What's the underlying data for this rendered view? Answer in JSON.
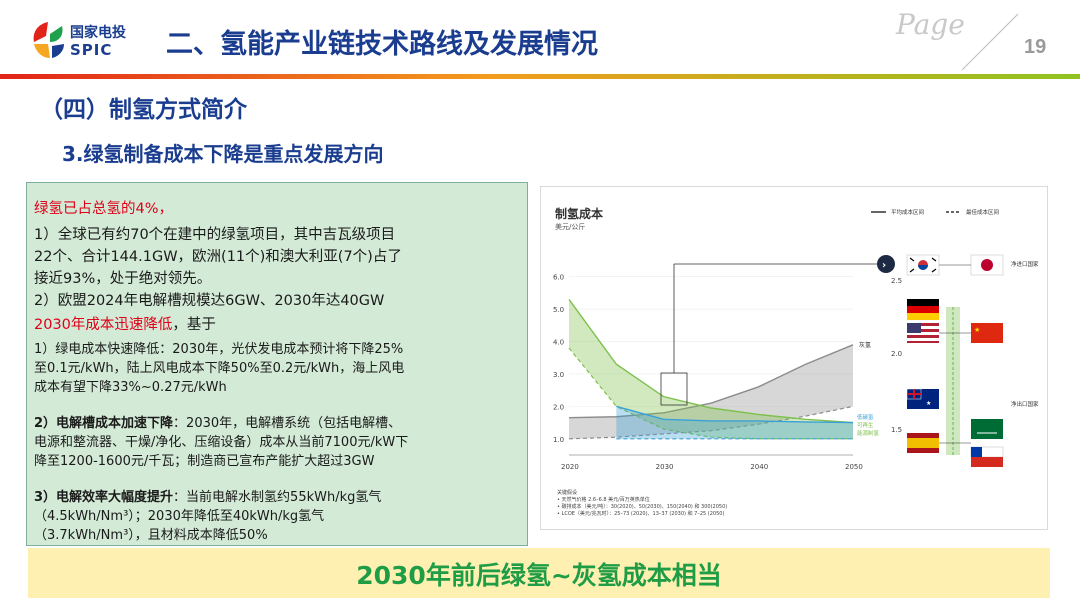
{
  "header": {
    "logo_cn": "国家电投",
    "logo_en": "SPIC",
    "title": "二、氢能产业链技术路线及发展情况",
    "page_word": "Page",
    "page_number": "19"
  },
  "section_title": "（四）制氢方式简介",
  "subtitle": "3.绿氢制备成本下降是重点发展方向",
  "left_panel": {
    "line1": "绿氢已占总氢的4%，",
    "line2": "1）全球已有约70个在建中的绿氢项目，其中吉瓦级项目",
    "line3": "22个、合计144.1GW，欧洲(11个)和澳大利亚(7个)占了",
    "line4": "接近93%，处于绝对领先。",
    "line5": "2）欧盟2024年电解槽规模达6GW、2030年达40GW",
    "line6_red": "2030年成本迅速降低",
    "line6_rest": "，基于",
    "p1_l1": "1）绿电成本快速降低：2030年，光伏发电成本预计将下降25%",
    "p1_l2": "至0.1元/kWh，陆上风电成本下降50%至0.2元/kWh，海上风电",
    "p1_l3": "成本有望下降33%~0.27元/kWh",
    "p2_bold": "2）电解槽成本加速下降",
    "p2_l1_rest": "：2030年，电解槽系统（包括电解槽、",
    "p2_l2": "电源和整流器、干燥/净化、压缩设备）成本从当前7100元/kW下",
    "p2_l3": "降至1200-1600元/千瓦；制造商已宣布产能扩大超过3GW",
    "p3_bold": "3）电解效率大幅度提升",
    "p3_l1_rest": "：当前电解水制氢约55kWh/kg氢气",
    "p3_l2": "（4.5kWh/Nm³）；2030年降低至40kWh/kg氢气",
    "p3_l3": "（3.7kWh/Nm³），且材料成本降低50%"
  },
  "banner": "2030年前后绿氢~灰氢成本相当",
  "chart_data": {
    "type": "area",
    "title": "制氢成本",
    "subtitle": "美元/公斤",
    "legend": [
      "平均成本区间",
      "最佳成本区间"
    ],
    "x_ticks": [
      "2020",
      "2030",
      "2040",
      "2050"
    ],
    "y_ticks": [
      "1.0",
      "2.0",
      "3.0",
      "4.0",
      "5.0",
      "6.0"
    ],
    "xlim": [
      2020,
      2050
    ],
    "ylim": [
      0.5,
      6.3
    ],
    "series": [
      {
        "name": "灰氢",
        "color": "#8c8c8c",
        "x": [
          2020,
          2025,
          2030,
          2035,
          2040,
          2045,
          2050
        ],
        "upper": [
          1.65,
          1.68,
          1.8,
          2.1,
          2.6,
          3.3,
          3.9
        ],
        "lower": [
          1.0,
          1.05,
          1.15,
          1.25,
          1.45,
          1.7,
          2.0
        ]
      },
      {
        "name": "可再生能源制氢",
        "color": "#7dc04b",
        "x": [
          2020,
          2025,
          2030,
          2035,
          2040,
          2045,
          2050
        ],
        "upper": [
          5.3,
          3.3,
          2.3,
          1.95,
          1.75,
          1.6,
          1.5
        ],
        "lower": [
          3.8,
          2.0,
          1.3,
          1.05,
          1.0,
          1.0,
          1.0
        ]
      },
      {
        "name": "低碳氢",
        "color": "#3aa0d8",
        "x": [
          2025,
          2030,
          2035,
          2040,
          2045,
          2050
        ],
        "upper": [
          2.0,
          1.6,
          1.55,
          1.55,
          1.52,
          1.5
        ],
        "lower": [
          1.0,
          1.0,
          1.0,
          1.0,
          1.0,
          1.0
        ]
      }
    ],
    "line_labels": [
      "灰氢",
      "低碳氢",
      "可再生",
      "能源制氢"
    ],
    "right_axis_ticks": [
      "2.5",
      "2.0",
      "1.5"
    ],
    "right_labels": [
      "净进口国家",
      "净出口国家"
    ],
    "flags": [
      "韩国",
      "日本",
      "德国",
      "美国",
      "中国",
      "澳大利亚",
      "沙特阿拉伯",
      "西班牙",
      "智利"
    ],
    "notes": [
      "关键假设",
      "• 天然气价格 2.6–6.8 美元/百万英热单位",
      "• 碳排成本（美元/吨）：30(2020)、50(2030)、150(2040) 和 300(2050)",
      "• LCOE（美元/兆瓦时）：25–73 (2020)、13–37 (2030) 和 7–25 (2050)"
    ]
  }
}
